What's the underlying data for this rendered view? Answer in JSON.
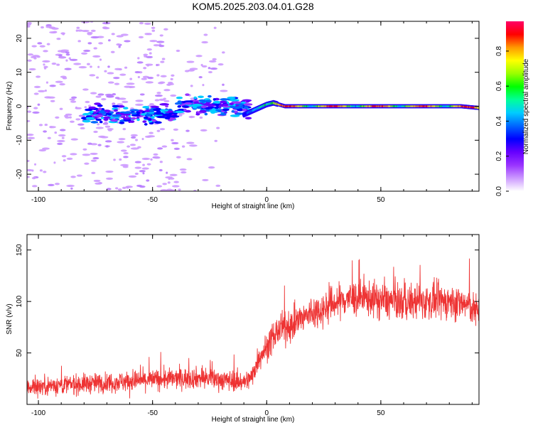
{
  "title": "KOM5.2025.203.04.01.G28",
  "chart_data": [
    {
      "type": "heatmap",
      "xlabel": "Height of straight line (km)",
      "ylabel": "Frequency (Hz)",
      "xlim": [
        -105,
        93
      ],
      "ylim": [
        -25,
        25
      ],
      "xticks": [
        -100,
        -50,
        0,
        50
      ],
      "yticks": [
        -20,
        -10,
        0,
        10,
        20
      ],
      "colorbar": {
        "label": "Normalized spectral amplitude",
        "range": [
          0.0,
          0.97
        ],
        "ticks": [
          0.0,
          0.2,
          0.4,
          0.6,
          0.8
        ],
        "colormap": [
          "#ffffff",
          "#cc99ff",
          "#9933ff",
          "#6600ff",
          "#0000ff",
          "#0066ff",
          "#00ccff",
          "#00ff99",
          "#00ff00",
          "#99ff00",
          "#ffff00",
          "#ff9900",
          "#ff0000",
          "#ff0066"
        ]
      },
      "ridge": {
        "description_free": true,
        "points": [
          [
            -10,
            -2.5
          ],
          [
            -5,
            -1
          ],
          [
            0,
            0.5
          ],
          [
            3,
            1
          ],
          [
            8,
            0
          ],
          [
            20,
            0
          ],
          [
            40,
            0
          ],
          [
            50,
            0
          ],
          [
            70,
            0
          ],
          [
            85,
            0
          ],
          [
            93,
            -0.5
          ]
        ]
      }
    },
    {
      "type": "line",
      "xlabel": "Height of straight line (km)",
      "ylabel": "SNR (v/v)",
      "xlim": [
        -105,
        93
      ],
      "ylim": [
        0,
        165
      ],
      "xticks": [
        -100,
        -50,
        0,
        50
      ],
      "yticks": [
        50,
        100,
        150
      ],
      "series_color": "#ee3333",
      "trend": [
        [
          -105,
          17
        ],
        [
          -80,
          20
        ],
        [
          -50,
          24
        ],
        [
          -30,
          26
        ],
        [
          -10,
          22
        ],
        [
          -7,
          25
        ],
        [
          -3,
          48
        ],
        [
          0,
          55
        ],
        [
          5,
          72
        ],
        [
          10,
          76
        ],
        [
          15,
          83
        ],
        [
          20,
          89
        ],
        [
          25,
          93
        ],
        [
          30,
          99
        ],
        [
          35,
          103
        ],
        [
          40,
          103
        ],
        [
          45,
          103
        ],
        [
          50,
          101
        ],
        [
          60,
          99
        ],
        [
          70,
          100
        ],
        [
          80,
          100
        ],
        [
          88,
          97
        ],
        [
          93,
          88
        ]
      ]
    }
  ]
}
